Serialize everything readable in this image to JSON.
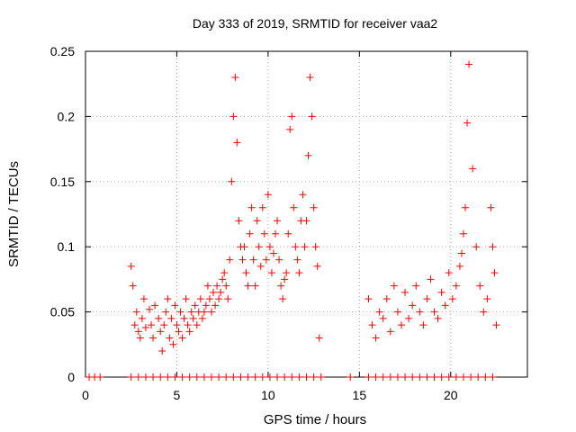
{
  "chart_data": {
    "type": "scatter",
    "title": "Day 333 of 2019, SRMTID for receiver vaa2",
    "xlabel": "GPS time / hours",
    "ylabel": "SRMTID / TECUs",
    "xlim": [
      0,
      24.2
    ],
    "ylim": [
      0,
      0.25
    ],
    "xticks": [
      0,
      5,
      10,
      15,
      20
    ],
    "xtick_labels": [
      "0",
      "5",
      "10",
      "15",
      "20"
    ],
    "yticks": [
      0,
      0.05,
      0.1,
      0.15,
      0.2,
      0.25
    ],
    "ytick_labels": [
      "0",
      "0.05",
      "0.1",
      "0.15",
      "0.2",
      "0.25"
    ],
    "grid": true,
    "marker": "+",
    "color": "#ff0000",
    "series": [
      {
        "name": "SRMTID",
        "x": [
          2.5,
          2.6,
          2.7,
          2.8,
          2.9,
          3.0,
          3.1,
          3.2,
          3.3,
          3.5,
          3.6,
          3.7,
          3.8,
          4.0,
          4.1,
          4.2,
          4.3,
          4.4,
          4.5,
          4.6,
          4.7,
          4.8,
          4.9,
          5.0,
          5.1,
          5.2,
          5.3,
          5.4,
          5.5,
          5.6,
          5.7,
          5.8,
          5.9,
          6.0,
          6.1,
          6.2,
          6.3,
          6.4,
          6.5,
          6.6,
          6.7,
          6.8,
          6.9,
          7.0,
          7.1,
          7.2,
          7.3,
          7.4,
          7.5,
          7.6,
          7.7,
          7.8,
          7.9,
          8.0,
          8.1,
          8.2,
          8.3,
          8.4,
          8.5,
          8.6,
          8.7,
          8.8,
          8.9,
          9.0,
          9.1,
          9.2,
          9.3,
          9.4,
          9.5,
          9.6,
          9.7,
          9.8,
          9.9,
          10.0,
          10.1,
          10.2,
          10.3,
          10.4,
          10.5,
          10.6,
          10.7,
          10.8,
          10.9,
          11.0,
          11.1,
          11.2,
          11.3,
          11.4,
          11.5,
          11.6,
          11.7,
          11.8,
          11.9,
          12.0,
          12.1,
          12.2,
          12.3,
          12.4,
          12.5,
          12.6,
          12.7,
          12.8,
          15.5,
          15.7,
          15.9,
          16.1,
          16.3,
          16.5,
          16.7,
          16.9,
          17.1,
          17.3,
          17.5,
          17.7,
          17.9,
          18.1,
          18.3,
          18.5,
          18.7,
          18.9,
          19.1,
          19.3,
          19.5,
          19.7,
          19.9,
          20.1,
          20.3,
          20.5,
          20.6,
          20.7,
          20.8,
          20.9,
          21.0,
          21.2,
          21.4,
          21.6,
          21.8,
          22.0,
          22.2,
          22.3,
          22.4,
          22.5
        ],
        "y": [
          0.085,
          0.07,
          0.04,
          0.05,
          0.035,
          0.03,
          0.045,
          0.06,
          0.038,
          0.052,
          0.04,
          0.03,
          0.055,
          0.045,
          0.035,
          0.02,
          0.04,
          0.05,
          0.06,
          0.03,
          0.045,
          0.025,
          0.055,
          0.04,
          0.035,
          0.05,
          0.03,
          0.045,
          0.06,
          0.04,
          0.035,
          0.05,
          0.045,
          0.055,
          0.04,
          0.05,
          0.06,
          0.045,
          0.05,
          0.055,
          0.07,
          0.06,
          0.05,
          0.065,
          0.055,
          0.07,
          0.06,
          0.065,
          0.075,
          0.08,
          0.07,
          0.06,
          0.09,
          0.15,
          0.2,
          0.23,
          0.18,
          0.12,
          0.1,
          0.09,
          0.1,
          0.08,
          0.07,
          0.11,
          0.13,
          0.09,
          0.07,
          0.12,
          0.1,
          0.085,
          0.13,
          0.11,
          0.09,
          0.14,
          0.1,
          0.08,
          0.095,
          0.11,
          0.12,
          0.09,
          0.07,
          0.06,
          0.075,
          0.08,
          0.11,
          0.19,
          0.2,
          0.13,
          0.1,
          0.09,
          0.08,
          0.12,
          0.14,
          0.1,
          0.12,
          0.17,
          0.23,
          0.2,
          0.13,
          0.1,
          0.085,
          0.03,
          0.06,
          0.04,
          0.03,
          0.05,
          0.045,
          0.06,
          0.035,
          0.07,
          0.05,
          0.04,
          0.065,
          0.045,
          0.055,
          0.07,
          0.05,
          0.04,
          0.06,
          0.075,
          0.05,
          0.045,
          0.065,
          0.055,
          0.08,
          0.06,
          0.07,
          0.085,
          0.095,
          0.11,
          0.13,
          0.195,
          0.24,
          0.16,
          0.1,
          0.07,
          0.05,
          0.06,
          0.13,
          0.1,
          0.08,
          0.04
        ]
      }
    ],
    "baseline_marks_x": [
      0.2,
      0.5,
      0.8,
      2.5,
      2.9,
      3.3,
      3.7,
      4.1,
      4.5,
      4.9,
      5.3,
      5.7,
      6.1,
      6.5,
      6.9,
      7.3,
      7.7,
      8.1,
      8.5,
      8.9,
      9.3,
      9.7,
      10.1,
      10.5,
      10.9,
      11.3,
      11.7,
      12.1,
      12.5,
      12.9,
      14.5,
      15.5,
      15.9,
      16.3,
      16.7,
      17.1,
      17.5,
      17.9,
      18.3,
      18.7,
      19.1,
      19.5,
      19.9,
      20.3,
      20.7,
      21.1,
      21.5,
      21.9,
      22.3
    ]
  }
}
